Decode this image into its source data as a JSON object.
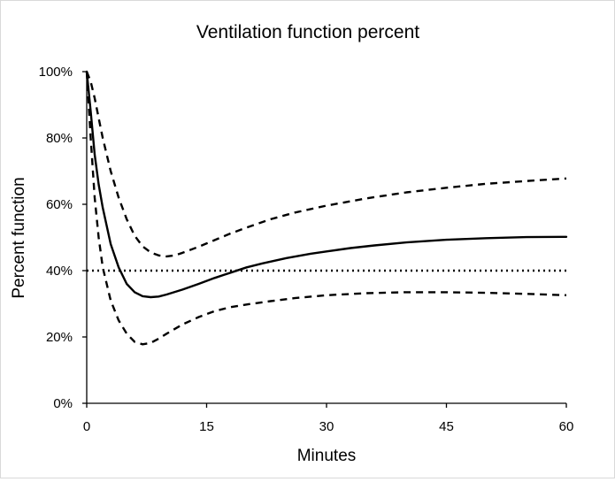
{
  "chart_data": {
    "type": "line",
    "title": "Ventilation function percent",
    "xlabel": "Minutes",
    "ylabel": "Percent function",
    "xlim": [
      0,
      60
    ],
    "ylim": [
      0,
      100
    ],
    "x_ticks": [
      0,
      15,
      30,
      45,
      60
    ],
    "y_ticks": [
      0,
      20,
      40,
      60,
      80,
      100
    ],
    "x_tick_labels": [
      "0",
      "15",
      "30",
      "45",
      "60"
    ],
    "y_tick_labels": [
      "0%",
      "20%",
      "40%",
      "60%",
      "80%",
      "100%"
    ],
    "grid": false,
    "legend": "none",
    "series": [
      {
        "style": "solid",
        "color": "#000000",
        "points": [
          [
            0,
            100
          ],
          [
            0.5,
            88
          ],
          [
            1,
            75
          ],
          [
            1.5,
            66
          ],
          [
            2,
            59
          ],
          [
            3,
            48
          ],
          [
            4,
            41
          ],
          [
            5,
            36
          ],
          [
            6,
            33.5
          ],
          [
            7,
            32.3
          ],
          [
            8,
            32
          ],
          [
            9,
            32.2
          ],
          [
            10,
            32.8
          ],
          [
            12,
            34.3
          ],
          [
            14,
            36
          ],
          [
            16,
            37.8
          ],
          [
            18,
            39.4
          ],
          [
            20,
            41
          ],
          [
            22,
            42.2
          ],
          [
            25,
            43.8
          ],
          [
            28,
            45.1
          ],
          [
            30,
            45.8
          ],
          [
            33,
            46.8
          ],
          [
            36,
            47.6
          ],
          [
            40,
            48.5
          ],
          [
            45,
            49.3
          ],
          [
            50,
            49.8
          ],
          [
            55,
            50.1
          ],
          [
            60,
            50.2
          ]
        ]
      },
      {
        "style": "dashed",
        "color": "#000000",
        "points": [
          [
            0,
            100
          ],
          [
            0.5,
            97
          ],
          [
            1,
            92
          ],
          [
            1.5,
            86
          ],
          [
            2,
            80
          ],
          [
            3,
            70
          ],
          [
            4,
            62
          ],
          [
            5,
            55.5
          ],
          [
            6,
            50.5
          ],
          [
            7,
            47.3
          ],
          [
            8,
            45.5
          ],
          [
            9,
            44.6
          ],
          [
            10,
            44.3
          ],
          [
            11,
            44.6
          ],
          [
            12,
            45.4
          ],
          [
            14,
            47.2
          ],
          [
            16,
            49.2
          ],
          [
            18,
            51.2
          ],
          [
            20,
            53
          ],
          [
            23,
            55.5
          ],
          [
            26,
            57.5
          ],
          [
            30,
            59.6
          ],
          [
            35,
            61.8
          ],
          [
            40,
            63.6
          ],
          [
            45,
            65
          ],
          [
            50,
            66.2
          ],
          [
            55,
            67
          ],
          [
            60,
            67.8
          ]
        ]
      },
      {
        "style": "dashed",
        "color": "#000000",
        "points": [
          [
            0,
            100
          ],
          [
            0.5,
            80
          ],
          [
            1,
            62
          ],
          [
            1.5,
            50
          ],
          [
            2,
            41
          ],
          [
            3,
            31
          ],
          [
            4,
            25
          ],
          [
            5,
            21
          ],
          [
            6,
            18.5
          ],
          [
            7,
            17.8
          ],
          [
            8,
            18.2
          ],
          [
            9,
            19.5
          ],
          [
            10,
            21
          ],
          [
            12,
            23.8
          ],
          [
            14,
            26
          ],
          [
            16,
            27.8
          ],
          [
            18,
            29
          ],
          [
            20,
            29.8
          ],
          [
            23,
            30.8
          ],
          [
            26,
            31.7
          ],
          [
            30,
            32.6
          ],
          [
            35,
            33.2
          ],
          [
            40,
            33.5
          ],
          [
            45,
            33.5
          ],
          [
            50,
            33.3
          ],
          [
            55,
            33
          ],
          [
            60,
            32.6
          ]
        ]
      },
      {
        "style": "dotted",
        "color": "#000000",
        "points": [
          [
            0,
            40
          ],
          [
            60,
            40
          ]
        ]
      }
    ]
  }
}
